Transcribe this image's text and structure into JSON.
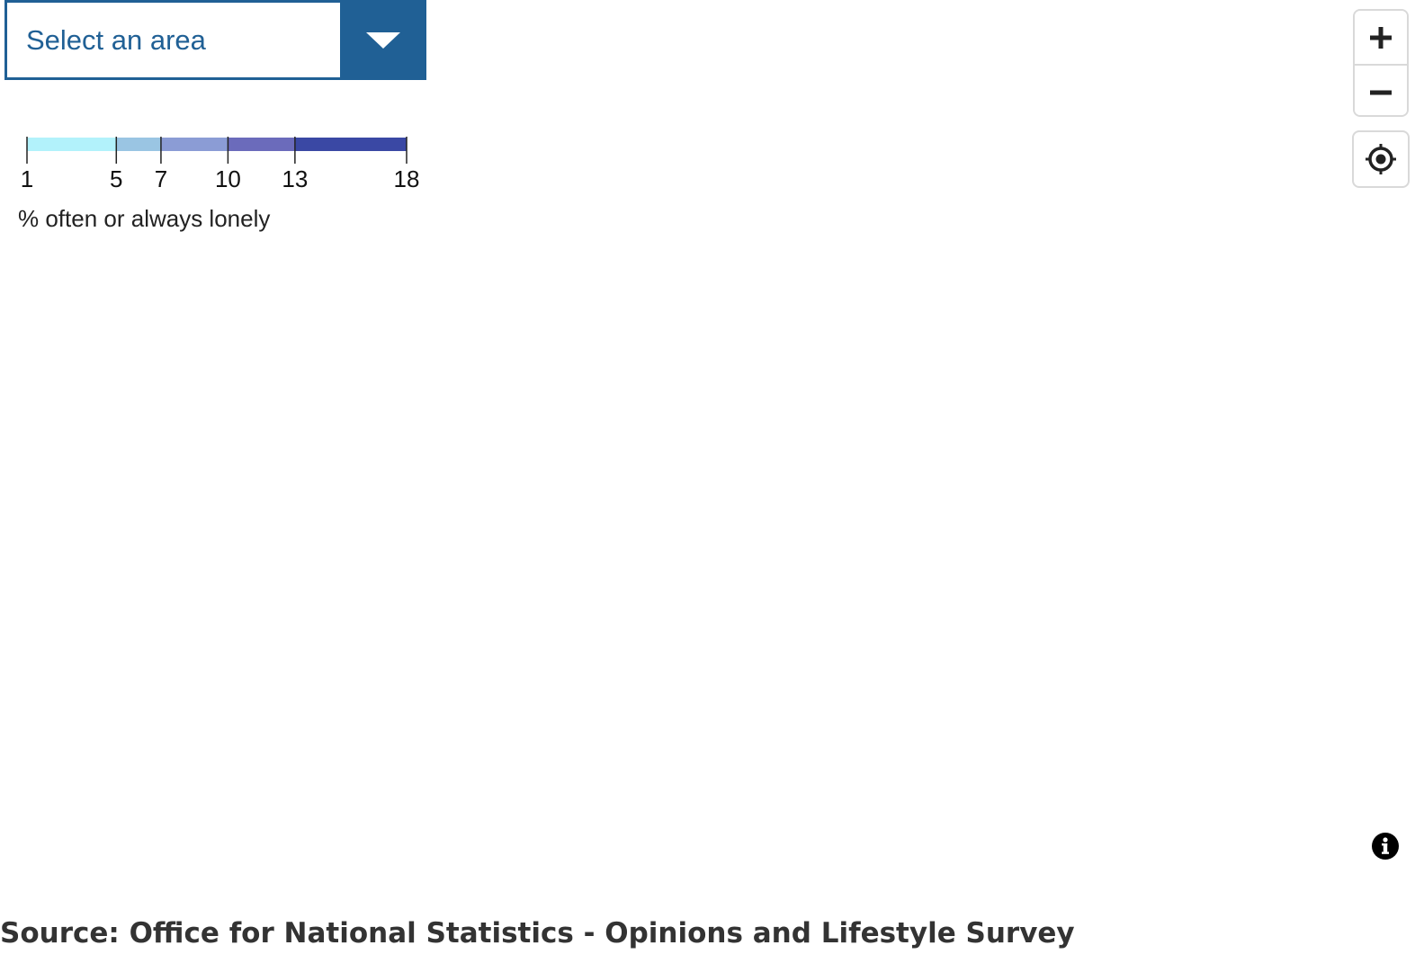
{
  "area_selector": {
    "placeholder": "Select an area",
    "toggle_icon": "chevron-down-icon"
  },
  "legend": {
    "title": "% often or always lonely",
    "breaks": [
      1,
      5,
      7,
      10,
      13,
      18
    ],
    "break_labels": [
      "1",
      "5",
      "7",
      "10",
      "13",
      "18"
    ],
    "colors": [
      "#b2f2fb",
      "#9ac5e3",
      "#8b9cd5",
      "#6b6bbb",
      "#3a48a4"
    ]
  },
  "map_controls": {
    "zoom_in_icon": "plus-icon",
    "zoom_out_icon": "minus-icon",
    "locate_icon": "crosshair-icon",
    "info_icon": "info-icon"
  },
  "source": {
    "text": "Source: Office for National Statistics - Opinions and Lifestyle Survey"
  }
}
